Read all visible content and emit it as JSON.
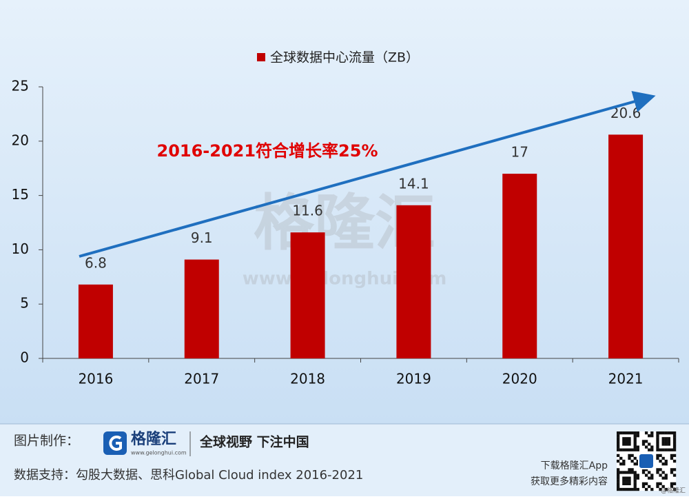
{
  "chart_data": {
    "type": "bar",
    "categories": [
      "2016",
      "2017",
      "2018",
      "2019",
      "2020",
      "2021"
    ],
    "series": [
      {
        "name": "全球数据中心流量（ZB）",
        "color": "#c00000",
        "values": [
          6.8,
          9.1,
          11.6,
          14.1,
          17,
          20.6
        ]
      }
    ],
    "ylim": [
      0,
      25
    ],
    "yticks": [
      0,
      5,
      10,
      15,
      20,
      25
    ],
    "annotation": "2016-2021符合增长率25%",
    "legend": "top"
  },
  "watermark": {
    "brand": "格隆汇",
    "url": "www.gelonghui.com"
  },
  "footer": {
    "made_by_label": "图片制作：",
    "logo_text": "格隆汇",
    "logo_url": "www.gelonghui.com",
    "slogan": "全球视野 下注中国",
    "source": "数据支持：勾股大数据、思科Global Cloud index 2016-2021",
    "app_line1": "下载格隆汇App",
    "app_line2": "获取更多精彩内容",
    "handle": "@格隆汇"
  }
}
